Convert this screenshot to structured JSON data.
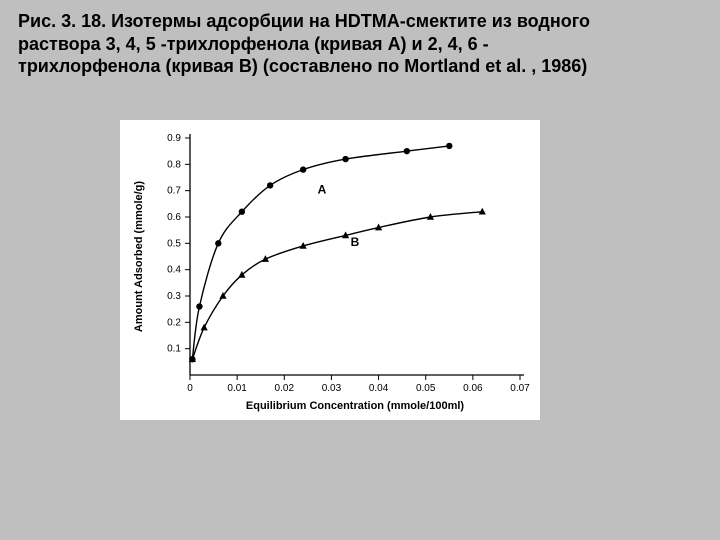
{
  "caption_lines": [
    "Рис. 3. 18. Изотермы адсорбции на HDTMA-смектите из водного",
    "раствора 3, 4, 5 -трихлорфенола (кривая A) и 2, 4, 6 -",
    "трихлорфенола (кривая B) (составлено по Mortland et al. , 1986)"
  ],
  "chart": {
    "type": "line",
    "background_color": "#ffffff",
    "page_color": "#bfbfbf",
    "axis_color": "#000000",
    "curve_color": "#000000",
    "xlabel": "Equilibrium Concentration (mmole/100ml)",
    "ylabel": "Amount Adsorbed (mmole/g)",
    "label_fontsize": 11,
    "tick_fontsize": 10,
    "curve_label_fontsize": 12,
    "xlim": [
      0,
      0.07
    ],
    "ylim": [
      0,
      0.9
    ],
    "xticks": [
      0,
      0.01,
      0.02,
      0.03,
      0.04,
      0.05,
      0.06,
      0.07
    ],
    "yticks": [
      0.1,
      0.2,
      0.3,
      0.4,
      0.5,
      0.6,
      0.7,
      0.8,
      0.9
    ],
    "xtick_labels": [
      "0",
      "0.01",
      "0.02",
      "0.03",
      "0.04",
      "0.05",
      "0.06",
      "0.07"
    ],
    "ytick_labels": [
      "0.1",
      "0.2",
      "0.3",
      "0.4",
      "0.5",
      "0.6",
      "0.7",
      "0.8",
      "0.9"
    ],
    "series": {
      "A": {
        "label": "A",
        "label_pos": [
          0.028,
          0.69
        ],
        "marker": "circle",
        "marker_size": 3.2,
        "points": [
          [
            0.0005,
            0.06
          ],
          [
            0.002,
            0.26
          ],
          [
            0.006,
            0.5
          ],
          [
            0.011,
            0.62
          ],
          [
            0.017,
            0.72
          ],
          [
            0.024,
            0.78
          ],
          [
            0.033,
            0.82
          ],
          [
            0.046,
            0.85
          ],
          [
            0.055,
            0.87
          ]
        ]
      },
      "B": {
        "label": "B",
        "label_pos": [
          0.035,
          0.49
        ],
        "marker": "triangle",
        "marker_size": 4,
        "points": [
          [
            0.0005,
            0.06
          ],
          [
            0.003,
            0.18
          ],
          [
            0.007,
            0.3
          ],
          [
            0.011,
            0.38
          ],
          [
            0.016,
            0.44
          ],
          [
            0.024,
            0.49
          ],
          [
            0.033,
            0.53
          ],
          [
            0.04,
            0.56
          ],
          [
            0.051,
            0.6
          ],
          [
            0.062,
            0.62
          ]
        ]
      }
    }
  }
}
